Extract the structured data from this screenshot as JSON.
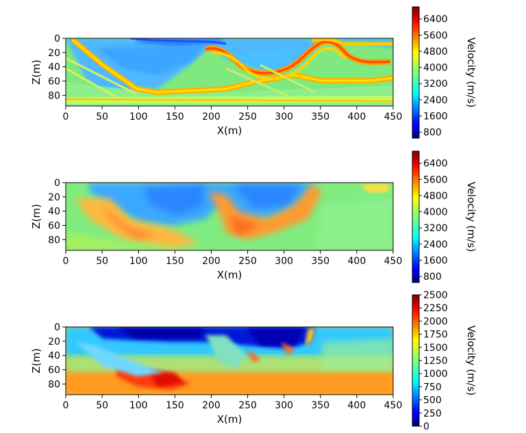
{
  "chart_data": [
    {
      "type": "heatmap",
      "xlabel": "X(m)",
      "ylabel": "Z(m)",
      "xlim": [
        0,
        450
      ],
      "ylim": [
        95,
        0
      ],
      "xticks": [
        "0",
        "50",
        "100",
        "150",
        "200",
        "250",
        "300",
        "350",
        "400",
        "450"
      ],
      "yticks": [
        "0",
        "20",
        "40",
        "60",
        "80"
      ],
      "colorbar": {
        "label": "Velocity (m/s)",
        "min": 500,
        "max": 7000,
        "ticks": [
          "800",
          "1600",
          "2400",
          "3200",
          "4000",
          "4800",
          "5600",
          "6400"
        ]
      },
      "colors": [
        "#00007f",
        "#0000ff",
        "#007fff",
        "#00ffff",
        "#7fff7f",
        "#ffff00",
        "#ff7f00",
        "#ff0000",
        "#7f0000"
      ]
    },
    {
      "type": "heatmap",
      "xlabel": "X(m)",
      "ylabel": "Z(m)",
      "xlim": [
        0,
        450
      ],
      "ylim": [
        95,
        0
      ],
      "xticks": [
        "0",
        "50",
        "100",
        "150",
        "200",
        "250",
        "300",
        "350",
        "400",
        "450"
      ],
      "yticks": [
        "0",
        "20",
        "40",
        "60",
        "80"
      ],
      "colorbar": {
        "label": "Velocity (m/s)",
        "min": 500,
        "max": 7000,
        "ticks": [
          "800",
          "1600",
          "2400",
          "3200",
          "4000",
          "4800",
          "5600",
          "6400"
        ]
      },
      "colors": [
        "#00007f",
        "#0000ff",
        "#007fff",
        "#00ffff",
        "#7fff7f",
        "#ffff00",
        "#ff7f00",
        "#ff0000",
        "#7f0000"
      ]
    },
    {
      "type": "heatmap",
      "xlabel": "X(m)",
      "ylabel": "Z(m)",
      "xlim": [
        0,
        450
      ],
      "ylim": [
        95,
        0
      ],
      "xticks": [
        "0",
        "50",
        "100",
        "150",
        "200",
        "250",
        "300",
        "350",
        "400",
        "450"
      ],
      "yticks": [
        "0",
        "20",
        "40",
        "60",
        "80"
      ],
      "colorbar": {
        "label": "Velocity (m/s)",
        "min": 0,
        "max": 2500,
        "ticks": [
          "0",
          "250",
          "500",
          "750",
          "1000",
          "1250",
          "1500",
          "1750",
          "2000",
          "2250",
          "2500"
        ]
      },
      "colors": [
        "#00007f",
        "#0000ff",
        "#007fff",
        "#00ffff",
        "#7fff7f",
        "#ffff00",
        "#ff7f00",
        "#ff0000",
        "#7f0000"
      ]
    }
  ]
}
